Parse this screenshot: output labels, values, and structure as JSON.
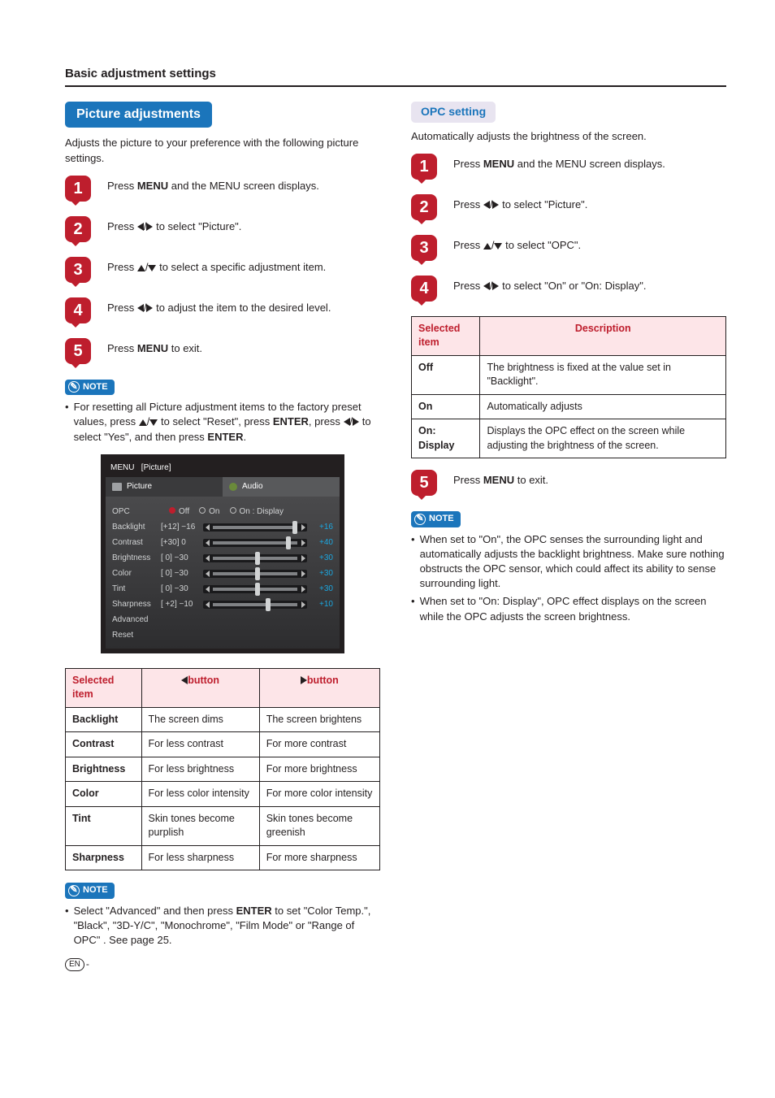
{
  "section_title": "Basic adjustment settings",
  "left": {
    "heading": "Picture adjustments",
    "intro": "Adjusts the picture to your preference with the following picture settings.",
    "steps": [
      {
        "n": "1",
        "pre": "Press ",
        "b": "MENU",
        "post": " and the MENU screen displays."
      },
      {
        "n": "2",
        "pre": "Press ",
        "arrows": "lr",
        "post": " to select \"Picture\"."
      },
      {
        "n": "3",
        "pre": "Press ",
        "arrows": "ud",
        "post": " to select a specific adjustment item."
      },
      {
        "n": "4",
        "pre": "Press ",
        "arrows": "lr",
        "post": " to adjust the item to the desired level."
      },
      {
        "n": "5",
        "pre": "Press ",
        "b": "MENU",
        "post": " to exit."
      }
    ],
    "note_label": "NOTE",
    "note1_pre": "For resetting all Picture adjustment items to the factory preset values, press ",
    "note1_mid1": " to select \"Reset\", press ",
    "note1_b1": "ENTER",
    "note1_mid2": ", press ",
    "note1_mid3": " to select \"Yes\", and then press ",
    "note1_b2": "ENTER",
    "note1_end": ".",
    "osd": {
      "menu_label": "MENU",
      "crumb": "[Picture]",
      "tab_picture": "Picture",
      "tab_audio": "Audio",
      "rows": [
        {
          "label": "OPC",
          "opts": [
            "Off",
            "On",
            "On : Display"
          ],
          "sel": 0
        },
        {
          "label": "Backlight",
          "cur": "[+12]",
          "min": "−16",
          "max": "+16",
          "knob": 86
        },
        {
          "label": "Contrast",
          "cur": "[+30]",
          "min": "0",
          "max": "+40",
          "knob": 80
        },
        {
          "label": "Brightness",
          "cur": "[   0]",
          "min": "−30",
          "max": "+30",
          "knob": 50
        },
        {
          "label": "Color",
          "cur": "[   0]",
          "min": "−30",
          "max": "+30",
          "knob": 50
        },
        {
          "label": "Tint",
          "cur": "[   0]",
          "min": "−30",
          "max": "+30",
          "knob": 50,
          "g": true
        },
        {
          "label": "Sharpness",
          "cur": "[ +2]",
          "min": "−10",
          "max": "+10",
          "knob": 60
        },
        {
          "label": "Advanced"
        },
        {
          "label": "Reset"
        }
      ]
    },
    "table": {
      "headers": [
        "Selected item",
        "◀button",
        "▶button"
      ],
      "rows": [
        [
          "Backlight",
          "The screen dims",
          "The screen brightens"
        ],
        [
          "Contrast",
          "For less contrast",
          "For more contrast"
        ],
        [
          "Brightness",
          "For less brightness",
          "For more brightness"
        ],
        [
          "Color",
          "For less color intensity",
          "For more color intensity"
        ],
        [
          "Tint",
          "Skin tones become purplish",
          "Skin tones become greenish"
        ],
        [
          "Sharpness",
          "For less sharpness",
          "For more sharpness"
        ]
      ]
    },
    "note2_pre": "Select \"Advanced\" and then press ",
    "note2_b": "ENTER",
    "note2_post": " to set \"Color Temp.\", \"Black\", \"3D-Y/C\", \"Monochrome\", \"Film Mode\" or \"Range of OPC\" . See page 25."
  },
  "right": {
    "heading": "OPC setting",
    "intro": "Automatically adjusts the brightness of the screen.",
    "steps": [
      {
        "n": "1",
        "pre": "Press ",
        "b": "MENU",
        "post": " and the MENU screen displays."
      },
      {
        "n": "2",
        "pre": "Press ",
        "arrows": "lr",
        "post": " to select \"Picture\"."
      },
      {
        "n": "3",
        "pre": "Press ",
        "arrows": "ud",
        "post": " to select \"OPC\"."
      },
      {
        "n": "4",
        "pre": "Press ",
        "arrows": "lr",
        "post": " to select \"On\" or \"On: Display\"."
      }
    ],
    "table": {
      "headers": [
        "Selected item",
        "Description"
      ],
      "rows": [
        [
          "Off",
          "The brightness is fixed at the value set in \"Backlight\"."
        ],
        [
          "On",
          "Automatically adjusts"
        ],
        [
          "On: Display",
          "Displays the OPC effect on the screen while adjusting the brightness of the screen."
        ]
      ]
    },
    "step5": {
      "n": "5",
      "pre": "Press ",
      "b": "MENU",
      "post": " to exit."
    },
    "notes": [
      "When set to \"On\", the OPC senses the surrounding light and automatically adjusts the backlight brightness. Make sure nothing obstructs the OPC sensor, which could affect its ability to sense surrounding light.",
      "When set to \"On: Display\", OPC effect displays on the screen while the OPC adjusts the screen brightness."
    ]
  },
  "footer": {
    "en": "EN",
    "dash": "-"
  }
}
